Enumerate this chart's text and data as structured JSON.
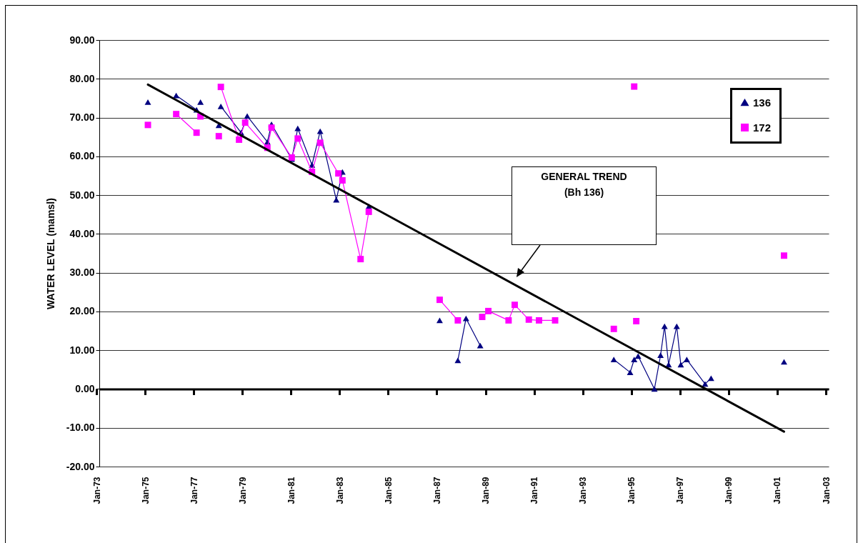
{
  "chart_data": {
    "type": "line",
    "ylabel": "WATER LEVEL (mamsl)",
    "xlim": [
      "1973-01",
      "2003-01"
    ],
    "xticks": [
      {
        "value": "1973-01",
        "label": "Jan-73"
      },
      {
        "value": "1975-01",
        "label": "Jan-75"
      },
      {
        "value": "1977-01",
        "label": "Jan-77"
      },
      {
        "value": "1979-01",
        "label": "Jan-79"
      },
      {
        "value": "1981-01",
        "label": "Jan-81"
      },
      {
        "value": "1983-01",
        "label": "Jan-83"
      },
      {
        "value": "1985-01",
        "label": "Jan-85"
      },
      {
        "value": "1987-01",
        "label": "Jan-87"
      },
      {
        "value": "1989-01",
        "label": "Jan-89"
      },
      {
        "value": "1991-01",
        "label": "Jan-91"
      },
      {
        "value": "1993-01",
        "label": "Jan-93"
      },
      {
        "value": "1995-01",
        "label": "Jan-95"
      },
      {
        "value": "1997-01",
        "label": "Jan-97"
      },
      {
        "value": "1999-01",
        "label": "Jan-99"
      },
      {
        "value": "2001-01",
        "label": "Jan-01"
      },
      {
        "value": "2003-01",
        "label": "Jan-03"
      }
    ],
    "ylim": [
      -20,
      90
    ],
    "yticks": [
      {
        "value": -20,
        "label": "-20.00"
      },
      {
        "value": -10,
        "label": "-10.00"
      },
      {
        "value": 0,
        "label": "0.00"
      },
      {
        "value": 10,
        "label": "10.00"
      },
      {
        "value": 20,
        "label": "20.00"
      },
      {
        "value": 30,
        "label": "30.00"
      },
      {
        "value": 40,
        "label": "40.00"
      },
      {
        "value": 50,
        "label": "50.00"
      },
      {
        "value": 60,
        "label": "60.00"
      },
      {
        "value": 70,
        "label": "70.00"
      },
      {
        "value": 80,
        "label": "80.00"
      },
      {
        "value": 90,
        "label": "90.00"
      }
    ],
    "grid": "y",
    "legend": "top right",
    "line_style": "solid",
    "annotations": [
      "GENERAL TREND\n(Bh 136)"
    ],
    "series": [
      {
        "name": "136",
        "color": "#000080",
        "marker": "triangle",
        "x": [
          "1975-01",
          "1975-08",
          "1976-03",
          "1977-01",
          "1977-02",
          "1977-03",
          "1977-07",
          "1977-12",
          "1977-12-20",
          "1978-01",
          "1978-11",
          "1979-02",
          "1979-12",
          "1980-02",
          "1980-12",
          "1981-03",
          "1981-10",
          "1982-02",
          "1982-10",
          "1983-01",
          "1983-08",
          "1984-02",
          "1985-06",
          "1987-01",
          "1987-06",
          "1987-10",
          "1988-02",
          "1988-09",
          "1991-06",
          "1994-03",
          "1994-11",
          "1995-01",
          "1995-03",
          "1995-11",
          "1996-02",
          "1996-04",
          "1996-06",
          "1996-10",
          "1996-12",
          "1997-03",
          "1997-12",
          "1998-03",
          "1999-06",
          "2001-03"
        ],
        "values": [
          74.0,
          null,
          75.7,
          72.0,
          null,
          74.0,
          null,
          68.0,
          null,
          72.9,
          66.1,
          70.4,
          63.7,
          68.3,
          59.3,
          67.2,
          57.8,
          66.5,
          48.8,
          56.0,
          null,
          47.1,
          null,
          17.7,
          null,
          7.4,
          18.2,
          11.2,
          null,
          7.6,
          4.3,
          7.6,
          8.5,
          0.0,
          8.7,
          16.2,
          6.3,
          16.2,
          6.3,
          7.6,
          1.3,
          2.8,
          null,
          7.0
        ]
      },
      {
        "name": "172",
        "color": "#ff00ff",
        "marker": "square",
        "x": [
          "1975-01",
          "1975-08",
          "1976-03",
          "1977-01",
          "1977-02",
          "1977-03",
          "1977-07",
          "1977-12",
          "1977-12-20",
          "1978-01",
          "1978-10",
          "1979-01",
          "1979-12",
          "1980-02",
          "1980-12",
          "1981-03",
          "1981-10",
          "1982-02",
          "1982-11",
          "1983-01",
          "1983-10",
          "1984-02",
          "1985-06",
          "1987-01",
          "1987-10",
          "1988-03",
          "1988-10",
          "1989-01",
          "1989-11",
          "1990-02",
          "1990-09",
          "1991-02",
          "1991-10",
          "1993-01",
          "1994-03",
          "1994-08",
          "1995-01",
          "1995-01-20",
          "1995-02",
          "1998-01",
          "2001-03"
        ],
        "values": [
          68.1,
          null,
          70.9,
          66.1,
          null,
          70.3,
          null,
          65.2,
          null,
          77.9,
          64.3,
          68.7,
          62.2,
          67.4,
          59.7,
          64.6,
          56.0,
          63.5,
          55.6,
          53.8,
          33.5,
          45.7,
          null,
          23.0,
          17.7,
          null,
          18.6,
          20.1,
          17.7,
          21.7,
          17.9,
          17.7,
          17.7,
          null,
          15.5,
          null,
          78.0,
          null,
          17.5,
          null,
          34.4
        ]
      },
      {
        "type": "line",
        "color": "#000000",
        "marker": "none",
        "x": [
          "1975-01",
          "2001-03"
        ],
        "values": [
          78.5,
          -11.0
        ]
      }
    ]
  }
}
